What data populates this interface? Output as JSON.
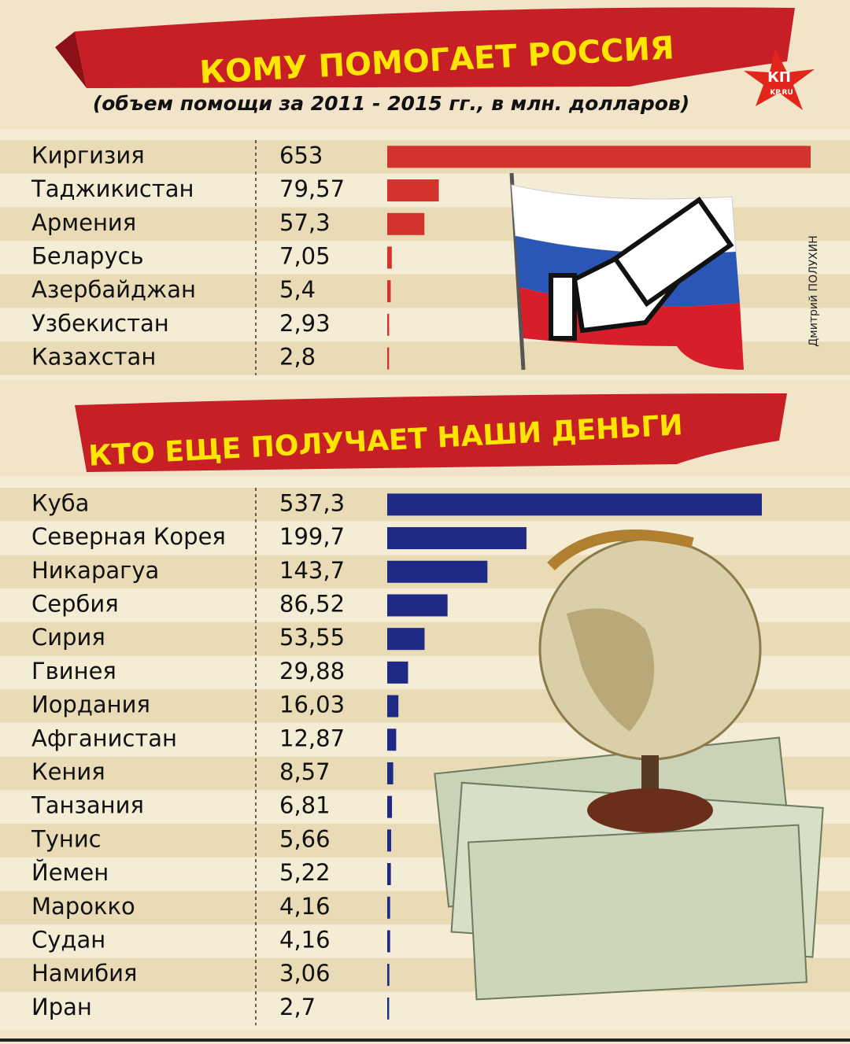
{
  "chart_data": [
    {
      "type": "bar",
      "orientation": "horizontal",
      "title": "КОМУ ПОМОГАЕТ РОССИЯ",
      "subtitle": "(объем помощи за 2011 - 2015 гг., в млн. долларов)",
      "categories": [
        "Киргизия",
        "Таджикистан",
        "Армения",
        "Беларусь",
        "Азербайджан",
        "Узбекистан",
        "Казахстан"
      ],
      "values": [
        653,
        79.57,
        57.3,
        7.05,
        5.4,
        2.93,
        2.8
      ],
      "value_labels": [
        "653",
        "79,57",
        "57,3",
        "7,05",
        "5,4",
        "2,93",
        "2,8"
      ],
      "color": "#d2332c"
    },
    {
      "type": "bar",
      "orientation": "horizontal",
      "title": "КТО ЕЩЕ ПОЛУЧАЕТ НАШИ ДЕНЬГИ",
      "categories": [
        "Куба",
        "Северная Корея",
        "Никарагуа",
        "Сербия",
        "Сирия",
        "Гвинея",
        "Иордания",
        "Афганистан",
        "Кения",
        "Танзания",
        "Тунис",
        "Йемен",
        "Марокко",
        "Судан",
        "Намибия",
        "Иран"
      ],
      "values": [
        537.3,
        199.7,
        143.7,
        86.52,
        53.55,
        29.88,
        16.03,
        12.87,
        8.57,
        6.81,
        5.66,
        5.22,
        4.16,
        4.16,
        3.06,
        2.7
      ],
      "value_labels": [
        "537,3",
        "199,7",
        "143,7",
        "86,52",
        "53,55",
        "29,88",
        "16,03",
        "12,87",
        "8,57",
        "6,81",
        "5,66",
        "5,22",
        "4,16",
        "4,16",
        "3,06",
        "2,7"
      ],
      "color": "#1f2a84"
    }
  ],
  "logo": "КП",
  "logo_site": "KP.RU",
  "credit": "Дмитрий ПОЛУХИН"
}
